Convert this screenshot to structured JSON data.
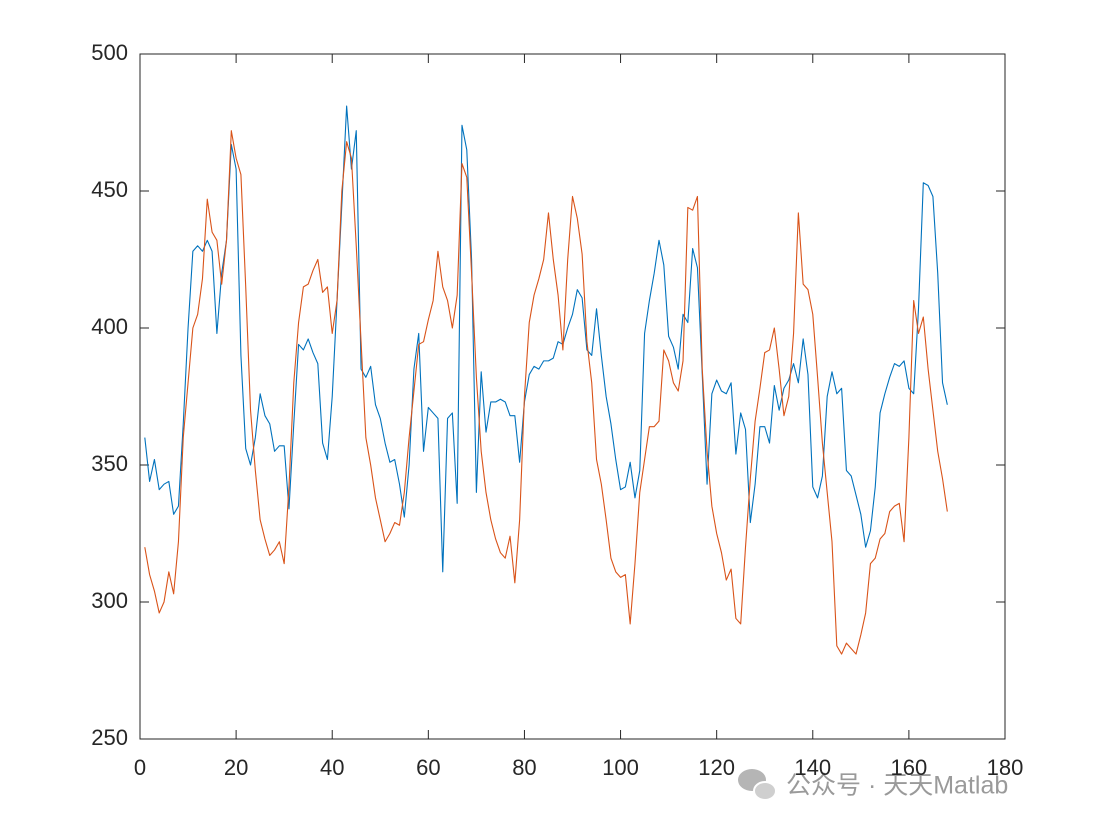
{
  "chart_data": {
    "type": "line",
    "x": [
      1,
      2,
      3,
      4,
      5,
      6,
      7,
      8,
      9,
      10,
      11,
      12,
      13,
      14,
      15,
      16,
      17,
      18,
      19,
      20,
      21,
      22,
      23,
      24,
      25,
      26,
      27,
      28,
      29,
      30,
      31,
      32,
      33,
      34,
      35,
      36,
      37,
      38,
      39,
      40,
      41,
      42,
      43,
      44,
      45,
      46,
      47,
      48,
      49,
      50,
      51,
      52,
      53,
      54,
      55,
      56,
      57,
      58,
      59,
      60,
      61,
      62,
      63,
      64,
      65,
      66,
      67,
      68,
      69,
      70,
      71,
      72,
      73,
      74,
      75,
      76,
      77,
      78,
      79,
      80,
      81,
      82,
      83,
      84,
      85,
      86,
      87,
      88,
      89,
      90,
      91,
      92,
      93,
      94,
      95,
      96,
      97,
      98,
      99,
      100,
      101,
      102,
      103,
      104,
      105,
      106,
      107,
      108,
      109,
      110,
      111,
      112,
      113,
      114,
      115,
      116,
      117,
      118,
      119,
      120,
      121,
      122,
      123,
      124,
      125,
      126,
      127,
      128,
      129,
      130,
      131,
      132,
      133,
      134,
      135,
      136,
      137,
      138,
      139,
      140,
      141,
      142,
      143,
      144,
      145,
      146,
      147,
      148,
      149,
      150,
      151,
      152,
      153,
      154,
      155,
      156,
      157,
      158,
      159,
      160,
      161,
      162,
      163,
      164,
      165,
      166,
      167,
      168
    ],
    "series": [
      {
        "color": "#0072BD",
        "values": [
          360,
          344,
          352,
          341,
          343,
          344,
          332,
          335,
          365,
          400,
          428,
          430,
          428,
          432,
          428,
          398,
          420,
          432,
          467,
          458,
          390,
          356,
          350,
          360,
          376,
          368,
          365,
          355,
          357,
          357,
          334,
          365,
          394,
          392,
          396,
          391,
          387,
          358,
          352,
          375,
          410,
          445,
          481,
          458,
          472,
          385,
          382,
          386,
          372,
          367,
          358,
          351,
          352,
          343,
          331,
          350,
          385,
          398,
          355,
          371,
          369,
          367,
          311,
          367,
          369,
          336,
          474,
          465,
          425,
          340,
          384,
          362,
          373,
          373,
          374,
          373,
          368,
          368,
          351,
          373,
          383,
          386,
          385,
          388,
          388,
          389,
          395,
          394,
          400,
          405,
          414,
          411,
          392,
          390,
          407,
          390,
          375,
          365,
          352,
          341,
          342,
          351,
          338,
          348,
          398,
          410,
          420,
          432,
          423,
          397,
          393,
          385,
          405,
          402,
          429,
          422,
          383,
          343,
          376,
          381,
          377,
          376,
          380,
          354,
          369,
          363,
          329,
          343,
          364,
          364,
          358,
          379,
          370,
          378,
          381,
          387,
          380,
          396,
          383,
          342,
          338,
          346,
          375,
          384,
          376,
          378,
          348,
          346,
          339,
          332,
          320,
          326,
          342,
          369,
          376,
          382,
          387,
          386,
          388,
          378,
          376,
          407,
          453,
          452,
          448,
          420,
          380,
          372
        ]
      },
      {
        "color": "#D95319",
        "values": [
          320,
          310,
          304,
          296,
          300,
          311,
          303,
          322,
          360,
          380,
          400,
          405,
          418,
          447,
          435,
          432,
          416,
          432,
          472,
          462,
          456,
          415,
          370,
          348,
          330,
          323,
          317,
          319,
          322,
          314,
          342,
          380,
          402,
          415,
          416,
          421,
          425,
          413,
          415,
          398,
          410,
          450,
          468,
          462,
          430,
          395,
          360,
          350,
          338,
          330,
          322,
          325,
          329,
          328,
          340,
          360,
          377,
          394,
          395,
          403,
          410,
          428,
          415,
          410,
          400,
          412,
          460,
          455,
          420,
          382,
          355,
          340,
          330,
          323,
          318,
          316,
          324,
          307,
          330,
          375,
          402,
          412,
          418,
          425,
          442,
          425,
          412,
          392,
          425,
          448,
          440,
          427,
          395,
          380,
          352,
          343,
          330,
          316,
          311,
          309,
          310,
          292,
          314,
          340,
          352,
          364,
          364,
          366,
          392,
          388,
          380,
          377,
          388,
          444,
          443,
          448,
          385,
          355,
          335,
          325,
          318,
          308,
          312,
          294,
          292,
          320,
          345,
          366,
          378,
          391,
          392,
          400,
          385,
          368,
          375,
          398,
          442,
          416,
          414,
          405,
          382,
          358,
          340,
          322,
          284,
          281,
          285,
          283,
          281,
          288,
          296,
          314,
          316,
          323,
          325,
          333,
          335,
          336,
          322,
          360,
          410,
          398,
          404,
          385,
          370,
          355,
          345,
          333
        ]
      }
    ],
    "xlim": [
      0,
      180
    ],
    "xticks": [
      0,
      20,
      40,
      60,
      80,
      100,
      120,
      140,
      160,
      180
    ],
    "ylim": [
      250,
      500
    ],
    "yticks": [
      250,
      300,
      350,
      400,
      450,
      500
    ],
    "grid": false
  },
  "watermark": "公众号 · 天天Matlab"
}
